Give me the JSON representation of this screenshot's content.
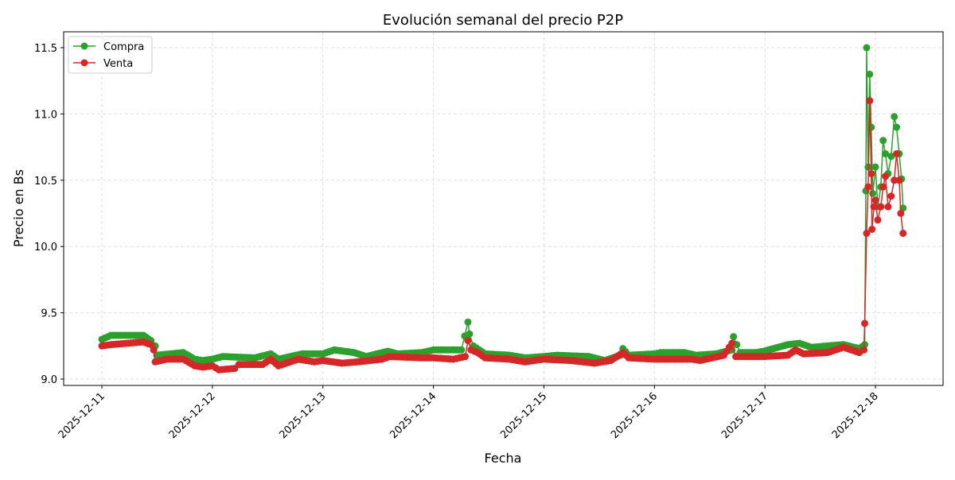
{
  "chart_data": {
    "type": "line",
    "title": "Evolución semanal del precio P2P",
    "xlabel": "Fecha",
    "ylabel": "Precio en Bs",
    "xlim": [
      "2025-12-10 15:42",
      "2025-12-18 14:41"
    ],
    "ylim": [
      8.952,
      11.62
    ],
    "xticks": [
      "2025-12-11",
      "2025-12-12",
      "2025-12-13",
      "2025-12-14",
      "2025-12-15",
      "2025-12-16",
      "2025-12-17",
      "2025-12-18"
    ],
    "yticks": [
      9.0,
      9.5,
      10.0,
      10.5,
      11.0,
      11.5
    ],
    "grid": true,
    "legend": "top-left",
    "series": [
      {
        "name": "Compra",
        "color": "#2ca02c",
        "points": [
          [
            "2025-12-11 00:00",
            9.3
          ],
          [
            "2025-12-11 02:00",
            9.33
          ],
          [
            "2025-12-11 09:00",
            9.33
          ],
          [
            "2025-12-11 10:40",
            9.29
          ],
          [
            "2025-12-11 11:35",
            9.25
          ],
          [
            "2025-12-11 11:55",
            9.18
          ],
          [
            "2025-12-11 17:40",
            9.2
          ],
          [
            "2025-12-11 20:10",
            9.15
          ],
          [
            "2025-12-11 21:55",
            9.14
          ],
          [
            "2025-12-12 00:00",
            9.15
          ],
          [
            "2025-12-12 02:15",
            9.17
          ],
          [
            "2025-12-12 09:10",
            9.16
          ],
          [
            "2025-12-12 12:40",
            9.19
          ],
          [
            "2025-12-12 14:20",
            9.15
          ],
          [
            "2025-12-12 19:30",
            9.19
          ],
          [
            "2025-12-13 00:00",
            9.19
          ],
          [
            "2025-12-13 02:30",
            9.22
          ],
          [
            "2025-12-13 06:45",
            9.2
          ],
          [
            "2025-12-13 09:25",
            9.17
          ],
          [
            "2025-12-13 14:05",
            9.21
          ],
          [
            "2025-12-13 16:15",
            9.19
          ],
          [
            "2025-12-13 21:30",
            9.2
          ],
          [
            "2025-12-14 00:00",
            9.22
          ],
          [
            "2025-12-14 06:05",
            9.22
          ],
          [
            "2025-12-14 07:30",
            9.43
          ],
          [
            "2025-12-14 07:50",
            9.34
          ],
          [
            "2025-12-14 08:40",
            9.25
          ],
          [
            "2025-12-14 11:15",
            9.19
          ],
          [
            "2025-12-14 16:30",
            9.18
          ],
          [
            "2025-12-14 19:55",
            9.16
          ],
          [
            "2025-12-14 23:55",
            9.17
          ],
          [
            "2025-12-15 02:50",
            9.18
          ],
          [
            "2025-12-15 09:45",
            9.17
          ],
          [
            "2025-12-15 13:15",
            9.14
          ],
          [
            "2025-12-15 16:40",
            9.18
          ],
          [
            "2025-12-15 17:10",
            9.23
          ],
          [
            "2025-12-15 18:25",
            9.18
          ],
          [
            "2025-12-15 23:55",
            9.19
          ],
          [
            "2025-12-16 01:20",
            9.2
          ],
          [
            "2025-12-16 06:30",
            9.2
          ],
          [
            "2025-12-16 09:05",
            9.18
          ],
          [
            "2025-12-16 13:25",
            9.19
          ],
          [
            "2025-12-16 16:50",
            9.22
          ],
          [
            "2025-12-16 17:10",
            9.32
          ],
          [
            "2025-12-16 18:35",
            9.2
          ],
          [
            "2025-12-16 22:00",
            9.2
          ],
          [
            "2025-12-16 23:45",
            9.21
          ],
          [
            "2025-12-17 05:00",
            9.26
          ],
          [
            "2025-12-17 07:30",
            9.27
          ],
          [
            "2025-12-17 10:05",
            9.24
          ],
          [
            "2025-12-17 17:05",
            9.26
          ],
          [
            "2025-12-17 20:30",
            9.23
          ],
          [
            "2025-12-17 21:40",
            9.26
          ],
          [
            "2025-12-17 21:55",
            10.42
          ],
          [
            "2025-12-17 22:05",
            11.5
          ],
          [
            "2025-12-17 22:25",
            10.6
          ],
          [
            "2025-12-17 22:45",
            11.3
          ],
          [
            "2025-12-17 23:05",
            10.9
          ],
          [
            "2025-12-17 23:25",
            10.4
          ],
          [
            "2025-12-18 00:00",
            10.6
          ],
          [
            "2025-12-18 00:30",
            10.3
          ],
          [
            "2025-12-18 01:10",
            10.45
          ],
          [
            "2025-12-18 01:40",
            10.8
          ],
          [
            "2025-12-18 02:10",
            10.7
          ],
          [
            "2025-12-18 02:45",
            10.55
          ],
          [
            "2025-12-18 03:25",
            10.68
          ],
          [
            "2025-12-18 04:05",
            10.98
          ],
          [
            "2025-12-18 04:35",
            10.9
          ],
          [
            "2025-12-18 05:10",
            10.7
          ],
          [
            "2025-12-18 05:40",
            10.51
          ],
          [
            "2025-12-18 06:00",
            10.29
          ]
        ]
      },
      {
        "name": "Venta",
        "color": "#d62728",
        "points": [
          [
            "2025-12-11 00:00",
            9.25
          ],
          [
            "2025-12-11 02:00",
            9.26
          ],
          [
            "2025-12-11 09:00",
            9.28
          ],
          [
            "2025-12-11 10:40",
            9.26
          ],
          [
            "2025-12-11 11:15",
            9.22
          ],
          [
            "2025-12-11 11:35",
            9.13
          ],
          [
            "2025-12-11 14:10",
            9.15
          ],
          [
            "2025-12-11 17:40",
            9.15
          ],
          [
            "2025-12-11 20:10",
            9.1
          ],
          [
            "2025-12-11 21:55",
            9.09
          ],
          [
            "2025-12-12 00:00",
            9.1
          ],
          [
            "2025-12-12 01:25",
            9.07
          ],
          [
            "2025-12-12 04:50",
            9.08
          ],
          [
            "2025-12-12 05:45",
            9.11
          ],
          [
            "2025-12-12 10:55",
            9.11
          ],
          [
            "2025-12-12 12:40",
            9.15
          ],
          [
            "2025-12-12 14:20",
            9.1
          ],
          [
            "2025-12-12 18:40",
            9.15
          ],
          [
            "2025-12-12 22:10",
            9.13
          ],
          [
            "2025-12-13 00:00",
            9.14
          ],
          [
            "2025-12-13 04:10",
            9.12
          ],
          [
            "2025-12-13 07:35",
            9.13
          ],
          [
            "2025-12-13 12:50",
            9.15
          ],
          [
            "2025-12-13 14:30",
            9.17
          ],
          [
            "2025-12-13 21:30",
            9.16
          ],
          [
            "2025-12-14 00:00",
            9.16
          ],
          [
            "2025-12-14 04:20",
            9.15
          ],
          [
            "2025-12-14 06:55",
            9.17
          ],
          [
            "2025-12-14 07:30",
            9.29
          ],
          [
            "2025-12-14 08:10",
            9.22
          ],
          [
            "2025-12-14 09:35",
            9.2
          ],
          [
            "2025-12-14 11:15",
            9.16
          ],
          [
            "2025-12-14 16:30",
            9.15
          ],
          [
            "2025-12-14 19:55",
            9.13
          ],
          [
            "2025-12-14 23:55",
            9.15
          ],
          [
            "2025-12-15 05:50",
            9.14
          ],
          [
            "2025-12-15 11:00",
            9.12
          ],
          [
            "2025-12-15 14:30",
            9.14
          ],
          [
            "2025-12-15 17:10",
            9.2
          ],
          [
            "2025-12-15 18:25",
            9.16
          ],
          [
            "2025-12-15 23:55",
            9.15
          ],
          [
            "2025-12-16 08:10",
            9.15
          ],
          [
            "2025-12-16 09:55",
            9.14
          ],
          [
            "2025-12-16 15:05",
            9.18
          ],
          [
            "2025-12-16 16:50",
            9.27
          ],
          [
            "2025-12-16 17:40",
            9.17
          ],
          [
            "2025-12-16 23:45",
            9.17
          ],
          [
            "2025-12-17 05:00",
            9.18
          ],
          [
            "2025-12-17 06:40",
            9.22
          ],
          [
            "2025-12-17 08:25",
            9.19
          ],
          [
            "2025-12-17 13:35",
            9.2
          ],
          [
            "2025-12-17 17:05",
            9.24
          ],
          [
            "2025-12-17 20:30",
            9.2
          ],
          [
            "2025-12-17 21:30",
            9.22
          ],
          [
            "2025-12-17 21:40",
            9.42
          ],
          [
            "2025-12-17 22:05",
            10.1
          ],
          [
            "2025-12-17 22:25",
            10.45
          ],
          [
            "2025-12-17 22:45",
            11.1
          ],
          [
            "2025-12-17 23:05",
            10.55
          ],
          [
            "2025-12-17 23:15",
            10.13
          ],
          [
            "2025-12-17 23:40",
            10.3
          ],
          [
            "2025-12-18 00:00",
            10.35
          ],
          [
            "2025-12-18 00:30",
            10.2
          ],
          [
            "2025-12-18 01:10",
            10.3
          ],
          [
            "2025-12-18 01:40",
            10.45
          ],
          [
            "2025-12-18 02:10",
            10.53
          ],
          [
            "2025-12-18 02:45",
            10.3
          ],
          [
            "2025-12-18 03:25",
            10.38
          ],
          [
            "2025-12-18 04:05",
            10.5
          ],
          [
            "2025-12-18 04:35",
            10.7
          ],
          [
            "2025-12-18 05:10",
            10.5
          ],
          [
            "2025-12-18 05:30",
            10.25
          ],
          [
            "2025-12-18 06:00",
            10.1
          ]
        ]
      }
    ]
  }
}
